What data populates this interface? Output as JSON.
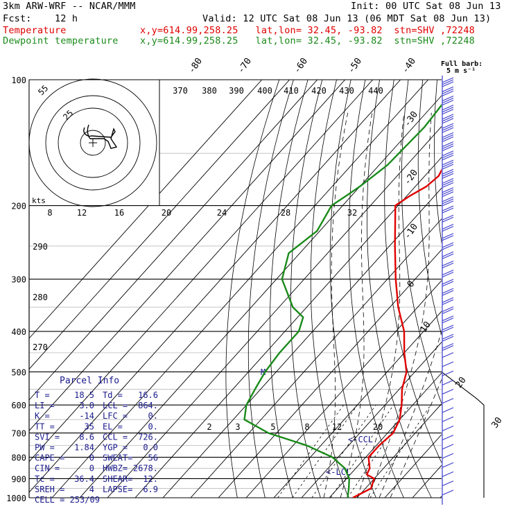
{
  "header": {
    "model": "3km ARW-WRF -- NCAR/MMM",
    "init": "Init: 00 UTC Sat 08 Jun 13",
    "fcst": "Fcst:    12 h",
    "valid": "Valid: 12 UTC Sat 08 Jun 13 (06 MDT Sat 08 Jun 13)",
    "temp_label": "Temperature",
    "dew_label": "Dewpoint temperature",
    "temp_loc": "x,y=614.99,258.25   lat,lon= 32.45, -93.82  stn=SHV ,72248",
    "dew_loc": "x,y=614.99,258.25   lat,lon= 32.45, -93.82  stn=SHV ,72248"
  },
  "colors": {
    "temperature": "#e00000",
    "dewpoint": "#1a8a1a",
    "parcel_text": "#1a1a8c",
    "barbs": "#3a3acc"
  },
  "chart_data": {
    "type": "line",
    "title": "Skew-T log-P sounding",
    "pressure_levels": [
      100,
      200,
      300,
      400,
      500,
      600,
      700,
      800,
      900,
      1000
    ],
    "pressure_labels": [
      "100",
      "200",
      "300",
      "400",
      "500",
      "600",
      "700",
      "800",
      "900",
      "1000"
    ],
    "isotherm_labels": [
      "-80",
      "-70",
      "-60",
      "-50",
      "-40",
      "-30",
      "-20",
      "-10",
      "0",
      "10",
      "20",
      "30",
      "40"
    ],
    "theta_labels": [
      "370",
      "380",
      "390",
      "400",
      "410",
      "420",
      "430",
      "440"
    ],
    "theta_e_labels": [
      "290",
      "280",
      "270"
    ],
    "mixing_ratio_labels": [
      "2",
      "3",
      "5",
      "8",
      "12",
      "20"
    ],
    "hodograph": {
      "ring_labels": [
        "55",
        "25"
      ],
      "kts_label": "kts",
      "speed_labels": [
        "8",
        "12",
        "16",
        "20",
        "24",
        "28",
        "32"
      ]
    },
    "barb_label": "Full barb:",
    "barb_unit": "5 m s⁻¹",
    "lcl_label": "<-LCL",
    "ccl_label": "<-CCL",
    "parcel_marker": "M",
    "series": [
      {
        "name": "Temperature",
        "color": "#e00000",
        "p": [
          100,
          130,
          150,
          170,
          180,
          190,
          200,
          250,
          300,
          350,
          400,
          450,
          500,
          550,
          600,
          650,
          700,
          750,
          800,
          850,
          880,
          900,
          950,
          1000
        ],
        "t": [
          -67,
          -62,
          -58,
          -55,
          -56,
          -59,
          -61,
          -48,
          -37,
          -27,
          -17,
          -10,
          -3,
          1,
          6,
          10,
          12,
          11,
          11,
          15,
          16,
          20,
          22,
          18.5
        ]
      },
      {
        "name": "Dewpoint temperature",
        "color": "#1a8a1a",
        "p": [
          100,
          130,
          160,
          180,
          190,
          200,
          230,
          260,
          300,
          350,
          370,
          400,
          450,
          500,
          550,
          600,
          650,
          700,
          750,
          800,
          850,
          900,
          950,
          1000
        ],
        "t": [
          -78,
          -76,
          -77,
          -80,
          -82,
          -84,
          -81,
          -84,
          -78,
          -65,
          -58,
          -55,
          -55,
          -54,
          -52,
          -50,
          -46,
          -33,
          -15,
          -2,
          6,
          11,
          14,
          16.6
        ]
      }
    ]
  },
  "parcel_info": {
    "title": "Parcel Info",
    "rows": [
      [
        "T  =",
        "18.5",
        "Td  =",
        "16.6"
      ],
      [
        "LI =",
        "3.0",
        "LCL =",
        "864."
      ],
      [
        "K  =",
        "-14",
        "LFC =",
        "0."
      ],
      [
        "TT =",
        "35",
        "EL  =",
        "0."
      ],
      [
        "SVI =",
        "8.6",
        "CCL =",
        "726."
      ],
      [
        "PW =",
        "1.84",
        "YGP =",
        "0.0"
      ],
      [
        "CAPE =",
        "0",
        "SWEAT=",
        "56"
      ],
      [
        "CIN =",
        "0",
        "HWBZ=",
        "2678."
      ],
      [
        "Tc =",
        "36.4",
        "SHEAR=",
        "12."
      ],
      [
        "SREH =",
        "4",
        "LAPSE=",
        "6.9"
      ]
    ],
    "cell": "CELL = 253/09"
  }
}
